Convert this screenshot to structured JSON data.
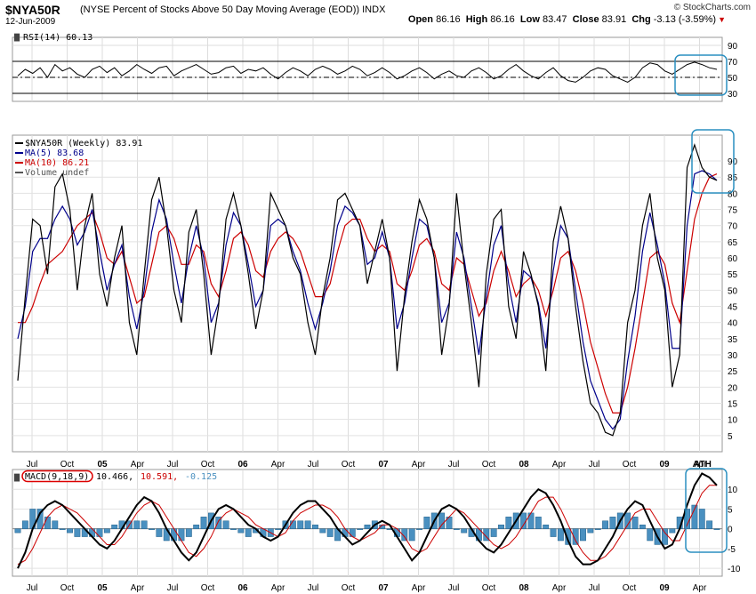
{
  "header": {
    "symbol": "$NYA50R",
    "description": "(NYSE Percent of Stocks Above 50 Day Moving Average (EOD))",
    "exchange": "INDX",
    "date": "12-Jun-2009",
    "brand": "© StockCharts.com",
    "quote": {
      "open_label": "Open",
      "open": "86.16",
      "high_label": "High",
      "high": "86.16",
      "low_label": "Low",
      "low": "83.47",
      "close_label": "Close",
      "close": "83.91",
      "chg_label": "Chg",
      "chg": "-3.13 (-3.59%)"
    }
  },
  "colors": {
    "price": "#000000",
    "ma5": "#00008b",
    "ma10": "#cc0000",
    "hist": "#4a90c0",
    "annotation": "#2a8fc0",
    "ath": "#ff0000"
  },
  "annotation": {
    "text": "ATH"
  },
  "chart_data": [
    {
      "type": "line",
      "name": "rsi-panel",
      "legend": "RSI(14) 60.13",
      "ylim": [
        20,
        100
      ],
      "yticks": [
        "90",
        "70",
        "50",
        "30"
      ],
      "reference_lines": [
        70,
        50,
        30
      ],
      "series": [
        {
          "name": "RSI(14)",
          "values": [
            52,
            60,
            55,
            62,
            50,
            66,
            58,
            62,
            54,
            50,
            60,
            64,
            56,
            62,
            52,
            58,
            66,
            60,
            55,
            62,
            64,
            52,
            58,
            62,
            66,
            60,
            54,
            56,
            62,
            64,
            55,
            60,
            58,
            62,
            54,
            48,
            56,
            62,
            58,
            52,
            60,
            64,
            60,
            54,
            58,
            64,
            60,
            52,
            56,
            62,
            56,
            48,
            52,
            58,
            62,
            56,
            48,
            54,
            58,
            52,
            50,
            58,
            62,
            56,
            48,
            52,
            60,
            66,
            58,
            52,
            48,
            56,
            62,
            52,
            46,
            44,
            50,
            58,
            62,
            60,
            52,
            48,
            44,
            50,
            62,
            68,
            66,
            58,
            54,
            60,
            66,
            69,
            66,
            62,
            60
          ]
        }
      ]
    },
    {
      "type": "line",
      "name": "price-panel",
      "legend": [
        "$NYA50R (Weekly) 83.91",
        "MA(5) 83.68",
        "MA(10) 86.21",
        "Volume undef"
      ],
      "ylim": [
        0,
        98
      ],
      "yticks": [
        "90",
        "85",
        "80",
        "75",
        "70",
        "65",
        "60",
        "55",
        "50",
        "45",
        "40",
        "35",
        "30",
        "25",
        "20",
        "15",
        "10",
        "5"
      ],
      "series": [
        {
          "name": "$NYA50R (Weekly)",
          "values": [
            22,
            48,
            72,
            70,
            55,
            82,
            86,
            75,
            50,
            70,
            80,
            55,
            45,
            60,
            70,
            40,
            30,
            55,
            78,
            85,
            70,
            50,
            40,
            68,
            75,
            55,
            30,
            45,
            72,
            80,
            70,
            55,
            38,
            50,
            80,
            75,
            70,
            60,
            55,
            40,
            30,
            48,
            60,
            78,
            80,
            75,
            70,
            52,
            62,
            72,
            60,
            25,
            48,
            65,
            78,
            72,
            60,
            30,
            45,
            80,
            58,
            40,
            20,
            55,
            72,
            75,
            45,
            35,
            62,
            55,
            45,
            25,
            65,
            76,
            66,
            45,
            28,
            15,
            12,
            6,
            5,
            12,
            40,
            50,
            70,
            80,
            60,
            50,
            20,
            30,
            88,
            95,
            88,
            85,
            84
          ]
        },
        {
          "name": "MA(5)",
          "values": [
            35,
            45,
            62,
            66,
            66,
            72,
            76,
            72,
            64,
            68,
            75,
            62,
            50,
            58,
            64,
            48,
            38,
            50,
            68,
            78,
            72,
            58,
            46,
            60,
            70,
            60,
            40,
            46,
            64,
            74,
            70,
            58,
            45,
            50,
            70,
            72,
            70,
            62,
            56,
            46,
            38,
            46,
            56,
            70,
            76,
            74,
            70,
            58,
            60,
            68,
            60,
            38,
            46,
            60,
            72,
            70,
            60,
            40,
            46,
            68,
            60,
            45,
            30,
            48,
            64,
            70,
            52,
            40,
            56,
            54,
            46,
            32,
            56,
            70,
            66,
            50,
            34,
            22,
            16,
            10,
            7,
            10,
            28,
            42,
            62,
            74,
            64,
            52,
            32,
            32,
            70,
            86,
            87,
            86,
            84
          ]
        },
        {
          "name": "MA(10)",
          "values": [
            40,
            40,
            45,
            52,
            58,
            60,
            62,
            66,
            70,
            72,
            74,
            68,
            60,
            58,
            62,
            54,
            46,
            48,
            58,
            68,
            70,
            66,
            58,
            58,
            64,
            62,
            52,
            48,
            56,
            66,
            68,
            64,
            56,
            54,
            62,
            66,
            68,
            66,
            62,
            55,
            48,
            48,
            52,
            62,
            70,
            72,
            72,
            66,
            62,
            64,
            62,
            52,
            50,
            56,
            64,
            66,
            62,
            52,
            50,
            60,
            58,
            50,
            42,
            46,
            56,
            62,
            56,
            48,
            52,
            54,
            50,
            42,
            50,
            60,
            62,
            56,
            46,
            34,
            26,
            18,
            12,
            12,
            20,
            32,
            46,
            60,
            62,
            58,
            46,
            40,
            56,
            72,
            80,
            85,
            86
          ]
        }
      ]
    },
    {
      "type": "line",
      "name": "macd-panel",
      "legend": {
        "label": "MACD(9,18,9)",
        "macd": "10.466,",
        "signal": "10.591,",
        "hist": "-0.125"
      },
      "ylim": [
        -12,
        15
      ],
      "yticks": [
        "10",
        "5",
        "0",
        "-5",
        "-10"
      ],
      "series": [
        {
          "name": "MACD",
          "values": [
            -10,
            -6,
            0,
            4,
            6,
            7,
            6,
            4,
            2,
            0,
            -2,
            -4,
            -5,
            -3,
            0,
            3,
            6,
            8,
            7,
            4,
            0,
            -3,
            -6,
            -8,
            -6,
            -2,
            2,
            5,
            6,
            5,
            3,
            1,
            0,
            -2,
            -3,
            -2,
            1,
            4,
            6,
            7,
            7,
            5,
            3,
            0,
            -2,
            -4,
            -3,
            -1,
            1,
            2,
            1,
            -2,
            -5,
            -8,
            -6,
            -2,
            2,
            5,
            6,
            5,
            3,
            0,
            -3,
            -5,
            -6,
            -4,
            -1,
            2,
            5,
            8,
            10,
            9,
            6,
            2,
            -3,
            -7,
            -9,
            -9,
            -8,
            -5,
            -2,
            2,
            5,
            7,
            6,
            2,
            -2,
            -5,
            -4,
            0,
            6,
            11,
            14,
            13,
            11
          ]
        },
        {
          "name": "Signal",
          "values": [
            -9,
            -8,
            -5,
            -1,
            3,
            5,
            6,
            5,
            4,
            2,
            0,
            -2,
            -4,
            -4,
            -2,
            1,
            4,
            6,
            7,
            6,
            3,
            0,
            -3,
            -6,
            -7,
            -5,
            -2,
            2,
            4,
            5,
            4,
            3,
            1,
            0,
            -1,
            -2,
            -1,
            2,
            4,
            5,
            6,
            6,
            5,
            3,
            0,
            -2,
            -3,
            -2,
            -1,
            1,
            1,
            0,
            -2,
            -5,
            -6,
            -5,
            -2,
            1,
            3,
            5,
            4,
            2,
            0,
            -2,
            -4,
            -5,
            -4,
            -2,
            1,
            4,
            7,
            8,
            8,
            5,
            1,
            -3,
            -6,
            -8,
            -8,
            -7,
            -5,
            -2,
            1,
            4,
            5,
            5,
            2,
            -1,
            -3,
            -3,
            1,
            5,
            9,
            11,
            11
          ]
        }
      ]
    }
  ],
  "xaxis": {
    "labels": [
      "Jul",
      "Oct",
      "05",
      "Apr",
      "Jul",
      "Oct",
      "06",
      "Apr",
      "Jul",
      "Oct",
      "07",
      "Apr",
      "Jul",
      "Oct",
      "08",
      "Apr",
      "Jul",
      "Oct",
      "09",
      "Apr"
    ]
  }
}
